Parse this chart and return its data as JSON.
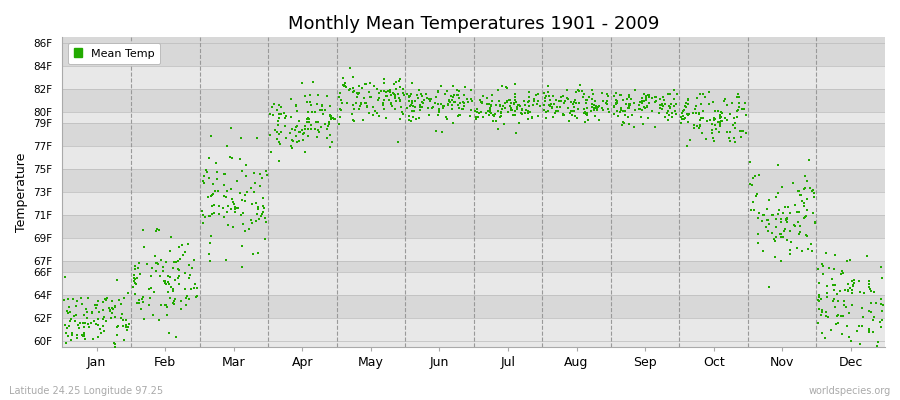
{
  "title": "Monthly Mean Temperatures 1901 - 2009",
  "ylabel": "Temperature",
  "xlabel_months": [
    "Jan",
    "Feb",
    "Mar",
    "Apr",
    "May",
    "Jun",
    "Jul",
    "Aug",
    "Sep",
    "Oct",
    "Nov",
    "Dec"
  ],
  "legend_label": "Mean Temp",
  "dot_color": "#22aa00",
  "background_color": "#ffffff",
  "plot_bg_color": "#e8e8e8",
  "band_colors": [
    "#e0e0e0",
    "#ebebeb"
  ],
  "subtitle_left": "Latitude 24.25 Longitude 97.25",
  "subtitle_right": "worldspecies.org",
  "ytick_labels": [
    "60F",
    "62F",
    "64F",
    "66F",
    "67F",
    "69F",
    "71F",
    "73F",
    "75F",
    "77F",
    "79F",
    "80F",
    "82F",
    "84F",
    "86F"
  ],
  "ytick_values": [
    60,
    62,
    64,
    66,
    67,
    69,
    71,
    73,
    75,
    77,
    79,
    80,
    82,
    84,
    86
  ],
  "ylim": [
    59.5,
    86.5
  ],
  "monthly_means": [
    61.8,
    65.0,
    72.5,
    79.2,
    81.2,
    80.6,
    80.5,
    80.5,
    80.5,
    79.6,
    71.0,
    63.5
  ],
  "monthly_stds": [
    1.4,
    2.2,
    2.2,
    1.3,
    1.1,
    0.8,
    0.8,
    0.7,
    0.8,
    1.2,
    2.2,
    2.0
  ],
  "n_years": 109,
  "seed": 42,
  "dot_size": 3,
  "figsize": [
    9.0,
    4.0
  ],
  "dpi": 100
}
